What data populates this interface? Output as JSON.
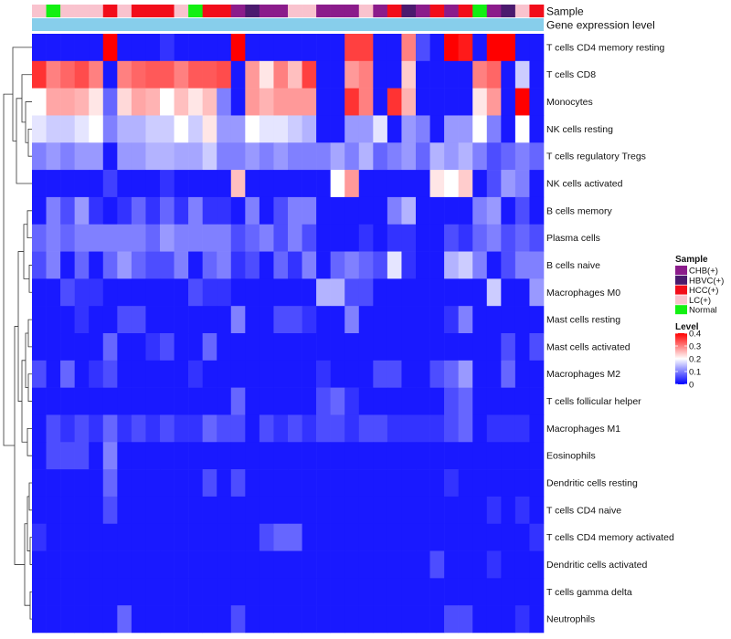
{
  "chart_data": {
    "type": "heatmap",
    "annotation_labels": {
      "sample": "Sample",
      "gene_expression": "Gene expression level"
    },
    "sample_groups": [
      "CHB(+)",
      "HBVC(+)",
      "HCC(+)",
      "LC(+)",
      "Normal"
    ],
    "group_colors": {
      "CHB(+)": "#8B1C8B",
      "HBVC(+)": "#4B1A6E",
      "HCC(+)": "#F20D1A",
      "LC(+)": "#F9C3CE",
      "Normal": "#12F012"
    },
    "sample_annotation": [
      "LC(+)",
      "Normal",
      "LC(+)",
      "LC(+)",
      "LC(+)",
      "HCC(+)",
      "LC(+)",
      "HCC(+)",
      "HCC(+)",
      "HCC(+)",
      "LC(+)",
      "Normal",
      "HCC(+)",
      "HCC(+)",
      "CHB(+)",
      "HBVC(+)",
      "CHB(+)",
      "CHB(+)",
      "LC(+)",
      "LC(+)",
      "CHB(+)",
      "CHB(+)",
      "CHB(+)",
      "LC(+)",
      "CHB(+)",
      "HCC(+)",
      "HBVC(+)",
      "CHB(+)",
      "HCC(+)",
      "CHB(+)",
      "HCC(+)",
      "Normal",
      "CHB(+)",
      "HBVC(+)",
      "LC(+)",
      "HCC(+)"
    ],
    "gene_expression_color": "#87CEEB",
    "rows": [
      "T cells CD4 memory resting",
      "T cells CD8",
      "Monocytes",
      "NK cells resting",
      "T cells regulatory  Tregs",
      "NK cells activated",
      "B cells memory",
      "Plasma cells",
      "B cells naive",
      "Macrophages M0",
      "Mast cells resting",
      "Mast cells activated",
      "Macrophages M2",
      "T cells follicular helper",
      "Macrophages M1",
      "Eosinophils",
      "Dendritic cells resting",
      "T cells CD4 naive",
      "T cells CD4 memory activated",
      "Dendritic cells activated",
      "T cells gamma delta",
      "Neutrophils"
    ],
    "values": [
      [
        0.02,
        0.02,
        0.02,
        0.02,
        0.02,
        0.4,
        0.02,
        0.02,
        0.02,
        0.04,
        0.02,
        0.02,
        0.02,
        0.02,
        0.4,
        0.02,
        0.02,
        0.02,
        0.02,
        0.02,
        0.02,
        0.02,
        0.35,
        0.35,
        0.02,
        0.02,
        0.3,
        0.06,
        0.02,
        0.4,
        0.38,
        0.02,
        0.4,
        0.4,
        0.02,
        0.02
      ],
      [
        0.36,
        0.3,
        0.32,
        0.34,
        0.3,
        0.02,
        0.3,
        0.32,
        0.33,
        0.33,
        0.3,
        0.33,
        0.33,
        0.34,
        0.02,
        0.28,
        0.22,
        0.3,
        0.25,
        0.35,
        0.02,
        0.02,
        0.28,
        0.3,
        0.02,
        0.02,
        0.24,
        0.02,
        0.02,
        0.02,
        0.02,
        0.3,
        0.32,
        0.02,
        0.16,
        0.02
      ],
      [
        0.2,
        0.27,
        0.27,
        0.26,
        0.22,
        0.08,
        0.23,
        0.27,
        0.26,
        0.2,
        0.25,
        0.22,
        0.25,
        0.1,
        0.02,
        0.28,
        0.26,
        0.28,
        0.28,
        0.28,
        0.02,
        0.02,
        0.36,
        0.3,
        0.02,
        0.36,
        0.26,
        0.02,
        0.02,
        0.02,
        0.02,
        0.22,
        0.28,
        0.02,
        0.4,
        0.02
      ],
      [
        0.18,
        0.16,
        0.16,
        0.18,
        0.2,
        0.1,
        0.14,
        0.14,
        0.16,
        0.16,
        0.2,
        0.16,
        0.22,
        0.12,
        0.12,
        0.2,
        0.18,
        0.18,
        0.16,
        0.14,
        0.02,
        0.02,
        0.12,
        0.12,
        0.18,
        0.02,
        0.12,
        0.1,
        0.02,
        0.12,
        0.12,
        0.2,
        0.1,
        0.02,
        0.2,
        0.02
      ],
      [
        0.1,
        0.12,
        0.1,
        0.12,
        0.12,
        0.02,
        0.12,
        0.12,
        0.14,
        0.14,
        0.13,
        0.13,
        0.16,
        0.1,
        0.1,
        0.12,
        0.1,
        0.12,
        0.1,
        0.1,
        0.1,
        0.13,
        0.1,
        0.14,
        0.08,
        0.1,
        0.12,
        0.08,
        0.14,
        0.12,
        0.14,
        0.1,
        0.06,
        0.08,
        0.1,
        0.08
      ],
      [
        0.02,
        0.02,
        0.02,
        0.02,
        0.02,
        0.05,
        0.02,
        0.02,
        0.02,
        0.04,
        0.02,
        0.02,
        0.02,
        0.02,
        0.25,
        0.02,
        0.02,
        0.02,
        0.02,
        0.02,
        0.02,
        0.2,
        0.28,
        0.02,
        0.02,
        0.02,
        0.02,
        0.02,
        0.22,
        0.2,
        0.24,
        0.02,
        0.06,
        0.12,
        0.1,
        0.02
      ],
      [
        0.02,
        0.1,
        0.06,
        0.12,
        0.04,
        0.02,
        0.04,
        0.08,
        0.04,
        0.08,
        0.04,
        0.1,
        0.04,
        0.04,
        0.02,
        0.1,
        0.02,
        0.06,
        0.1,
        0.1,
        0.02,
        0.02,
        0.02,
        0.02,
        0.02,
        0.1,
        0.14,
        0.02,
        0.02,
        0.02,
        0.02,
        0.1,
        0.12,
        0.02,
        0.06,
        0.02
      ],
      [
        0.08,
        0.1,
        0.08,
        0.1,
        0.1,
        0.1,
        0.1,
        0.1,
        0.08,
        0.12,
        0.1,
        0.1,
        0.1,
        0.1,
        0.06,
        0.08,
        0.1,
        0.06,
        0.1,
        0.06,
        0.02,
        0.02,
        0.02,
        0.04,
        0.02,
        0.04,
        0.04,
        0.02,
        0.02,
        0.06,
        0.04,
        0.08,
        0.1,
        0.06,
        0.08,
        0.06
      ],
      [
        0.06,
        0.1,
        0.02,
        0.08,
        0.02,
        0.08,
        0.12,
        0.08,
        0.06,
        0.06,
        0.1,
        0.02,
        0.08,
        0.1,
        0.04,
        0.06,
        0.02,
        0.08,
        0.04,
        0.1,
        0.02,
        0.08,
        0.1,
        0.08,
        0.06,
        0.18,
        0.04,
        0.02,
        0.02,
        0.14,
        0.16,
        0.1,
        0.02,
        0.06,
        0.1,
        0.1
      ],
      [
        0.02,
        0.02,
        0.06,
        0.04,
        0.04,
        0.02,
        0.02,
        0.02,
        0.02,
        0.02,
        0.02,
        0.06,
        0.04,
        0.04,
        0.02,
        0.02,
        0.02,
        0.02,
        0.02,
        0.02,
        0.14,
        0.14,
        0.06,
        0.06,
        0.02,
        0.02,
        0.02,
        0.02,
        0.02,
        0.02,
        0.02,
        0.02,
        0.16,
        0.02,
        0.02,
        0.12
      ],
      [
        0.02,
        0.02,
        0.02,
        0.04,
        0.02,
        0.02,
        0.06,
        0.06,
        0.02,
        0.02,
        0.02,
        0.02,
        0.02,
        0.02,
        0.1,
        0.02,
        0.02,
        0.06,
        0.06,
        0.04,
        0.02,
        0.02,
        0.1,
        0.02,
        0.02,
        0.02,
        0.02,
        0.02,
        0.02,
        0.04,
        0.1,
        0.02,
        0.02,
        0.02,
        0.02,
        0.02
      ],
      [
        0.02,
        0.02,
        0.02,
        0.02,
        0.02,
        0.08,
        0.02,
        0.02,
        0.04,
        0.06,
        0.02,
        0.02,
        0.08,
        0.02,
        0.02,
        0.02,
        0.02,
        0.02,
        0.02,
        0.02,
        0.02,
        0.02,
        0.02,
        0.02,
        0.02,
        0.02,
        0.02,
        0.02,
        0.02,
        0.02,
        0.02,
        0.02,
        0.02,
        0.06,
        0.02,
        0.06
      ],
      [
        0.06,
        0.02,
        0.08,
        0.02,
        0.04,
        0.06,
        0.02,
        0.02,
        0.02,
        0.02,
        0.02,
        0.04,
        0.02,
        0.02,
        0.02,
        0.02,
        0.02,
        0.02,
        0.02,
        0.02,
        0.04,
        0.02,
        0.02,
        0.02,
        0.06,
        0.06,
        0.02,
        0.02,
        0.06,
        0.08,
        0.12,
        0.02,
        0.02,
        0.08,
        0.02,
        0.02
      ],
      [
        0.02,
        0.02,
        0.02,
        0.02,
        0.02,
        0.02,
        0.02,
        0.02,
        0.02,
        0.02,
        0.02,
        0.02,
        0.02,
        0.02,
        0.08,
        0.02,
        0.02,
        0.02,
        0.02,
        0.02,
        0.06,
        0.08,
        0.04,
        0.02,
        0.02,
        0.02,
        0.02,
        0.02,
        0.02,
        0.06,
        0.08,
        0.02,
        0.02,
        0.02,
        0.02,
        0.02
      ],
      [
        0.02,
        0.06,
        0.04,
        0.06,
        0.04,
        0.08,
        0.04,
        0.06,
        0.04,
        0.06,
        0.04,
        0.04,
        0.08,
        0.06,
        0.06,
        0.02,
        0.06,
        0.04,
        0.06,
        0.04,
        0.06,
        0.06,
        0.04,
        0.06,
        0.06,
        0.04,
        0.04,
        0.04,
        0.04,
        0.06,
        0.08,
        0.02,
        0.04,
        0.04,
        0.04,
        0.02
      ],
      [
        0.02,
        0.06,
        0.06,
        0.06,
        0.02,
        0.1,
        0.02,
        0.02,
        0.02,
        0.02,
        0.02,
        0.02,
        0.02,
        0.02,
        0.02,
        0.02,
        0.02,
        0.02,
        0.02,
        0.02,
        0.02,
        0.02,
        0.02,
        0.02,
        0.02,
        0.02,
        0.02,
        0.02,
        0.02,
        0.02,
        0.02,
        0.02,
        0.02,
        0.02,
        0.02,
        0.02
      ],
      [
        0.02,
        0.02,
        0.02,
        0.02,
        0.02,
        0.08,
        0.02,
        0.02,
        0.02,
        0.02,
        0.02,
        0.02,
        0.06,
        0.02,
        0.06,
        0.02,
        0.02,
        0.02,
        0.02,
        0.02,
        0.02,
        0.02,
        0.02,
        0.02,
        0.02,
        0.02,
        0.02,
        0.02,
        0.02,
        0.04,
        0.02,
        0.02,
        0.02,
        0.02,
        0.02,
        0.02
      ],
      [
        0.02,
        0.02,
        0.02,
        0.02,
        0.02,
        0.06,
        0.02,
        0.02,
        0.02,
        0.02,
        0.02,
        0.02,
        0.02,
        0.02,
        0.02,
        0.02,
        0.02,
        0.02,
        0.02,
        0.02,
        0.02,
        0.02,
        0.02,
        0.02,
        0.02,
        0.02,
        0.02,
        0.02,
        0.02,
        0.02,
        0.02,
        0.02,
        0.04,
        0.02,
        0.04,
        0.02
      ],
      [
        0.04,
        0.02,
        0.02,
        0.02,
        0.02,
        0.02,
        0.02,
        0.02,
        0.02,
        0.02,
        0.02,
        0.02,
        0.02,
        0.02,
        0.02,
        0.02,
        0.06,
        0.08,
        0.08,
        0.02,
        0.02,
        0.02,
        0.02,
        0.02,
        0.02,
        0.02,
        0.02,
        0.02,
        0.02,
        0.02,
        0.02,
        0.02,
        0.02,
        0.02,
        0.02,
        0.04
      ],
      [
        0.02,
        0.02,
        0.02,
        0.02,
        0.02,
        0.02,
        0.02,
        0.02,
        0.02,
        0.02,
        0.02,
        0.02,
        0.02,
        0.02,
        0.02,
        0.02,
        0.02,
        0.02,
        0.02,
        0.02,
        0.02,
        0.02,
        0.02,
        0.02,
        0.02,
        0.02,
        0.02,
        0.02,
        0.06,
        0.02,
        0.02,
        0.02,
        0.04,
        0.02,
        0.02,
        0.02
      ],
      [
        0.02,
        0.02,
        0.02,
        0.02,
        0.02,
        0.02,
        0.02,
        0.02,
        0.02,
        0.02,
        0.02,
        0.02,
        0.02,
        0.02,
        0.02,
        0.02,
        0.02,
        0.02,
        0.02,
        0.02,
        0.02,
        0.02,
        0.02,
        0.02,
        0.02,
        0.02,
        0.02,
        0.02,
        0.02,
        0.02,
        0.02,
        0.02,
        0.02,
        0.02,
        0.02,
        0.02
      ],
      [
        0.02,
        0.02,
        0.02,
        0.02,
        0.02,
        0.02,
        0.08,
        0.02,
        0.02,
        0.02,
        0.02,
        0.02,
        0.02,
        0.02,
        0.06,
        0.02,
        0.02,
        0.02,
        0.02,
        0.02,
        0.02,
        0.02,
        0.02,
        0.02,
        0.02,
        0.02,
        0.02,
        0.02,
        0.02,
        0.06,
        0.06,
        0.02,
        0.02,
        0.02,
        0.04,
        0.02
      ]
    ],
    "legend": {
      "sample_title": "Sample",
      "level_title": "Level",
      "level_ticks": [
        0.4,
        0.3,
        0.2,
        0.1,
        0
      ],
      "level_tick_labels": [
        "0.4",
        "0.3",
        "0.2",
        "0.1",
        "0"
      ],
      "level_range": [
        0,
        0.4
      ],
      "level_colors": [
        "#0000FF",
        "#FFFFFF",
        "#FF0000"
      ]
    }
  }
}
